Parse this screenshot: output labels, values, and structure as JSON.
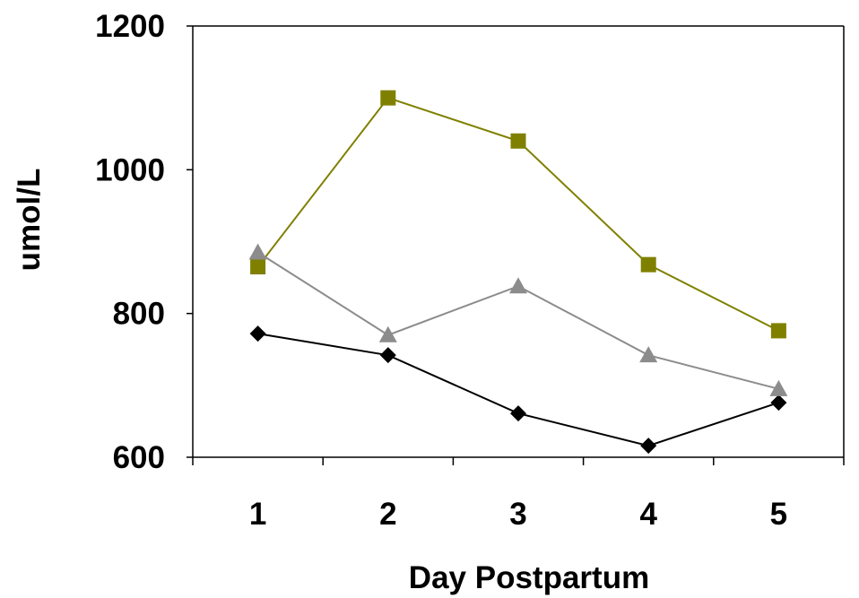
{
  "chart_data": {
    "type": "line",
    "title": "",
    "xlabel": "Day Postpartum",
    "ylabel": "umol/L",
    "categories": [
      "1",
      "2",
      "3",
      "4",
      "5"
    ],
    "ylim": [
      600,
      1200
    ],
    "yticks": [
      "600",
      "800",
      "1000",
      "1200"
    ],
    "grid": false,
    "legend": "none",
    "series": [
      {
        "marker": "diamond",
        "color": "#000000",
        "values": [
          772,
          742,
          661,
          616,
          676
        ]
      },
      {
        "marker": "square",
        "color": "#808000",
        "values": [
          865,
          1100,
          1040,
          868,
          776
        ]
      },
      {
        "marker": "triangle",
        "color": "#8c8c8c",
        "values": [
          885,
          770,
          838,
          742,
          695
        ]
      }
    ]
  }
}
